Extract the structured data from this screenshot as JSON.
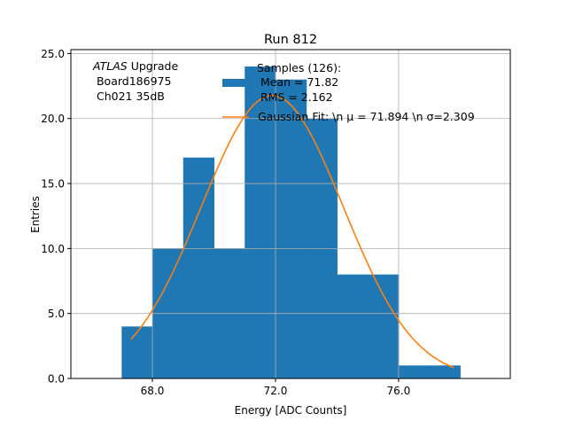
{
  "chart_data": {
    "type": "bar",
    "title": "Run 812",
    "xlabel": "Energy [ADC Counts]",
    "ylabel": "Entries",
    "xlim": [
      65.35,
      79.63
    ],
    "ylim": [
      0,
      25.3
    ],
    "xticks": [
      68.0,
      72.0,
      76.0
    ],
    "xtick_labels": [
      "68.0",
      "72.0",
      "76.0"
    ],
    "yticks": [
      0,
      5,
      10,
      15,
      20,
      25
    ],
    "ytick_labels": [
      "0.0",
      "5.0",
      "10.0",
      "15.0",
      "20.0",
      "25.0"
    ],
    "grid": true,
    "bins": {
      "edges": [
        67,
        68,
        69,
        70,
        71,
        72,
        73,
        74,
        75,
        76,
        77,
        78
      ],
      "counts": [
        4,
        10,
        17,
        10,
        24,
        23,
        20,
        8,
        8,
        1,
        1
      ]
    },
    "fit": {
      "type": "gaussian",
      "mu": 71.894,
      "sigma": 2.309,
      "n": 126,
      "x_range": [
        67.3,
        77.8
      ]
    },
    "colors": {
      "histogram": "#1f77b4",
      "fit": "#ff7f0e",
      "grid": "#b0b0b0"
    },
    "annotation": {
      "italic": "ATLAS",
      "rest": " Upgrade",
      "line2": " Board186975",
      "line3": " Ch021 35dB"
    },
    "legend": {
      "placement": "top-center",
      "entries": [
        {
          "lines": [
            "Samples (126):",
            " Mean = 71.82",
            " RMS = 2.162"
          ]
        },
        {
          "lines": [
            "Gaussian Fit: \\n μ = 71.894 \\n σ=2.309"
          ]
        }
      ]
    }
  }
}
